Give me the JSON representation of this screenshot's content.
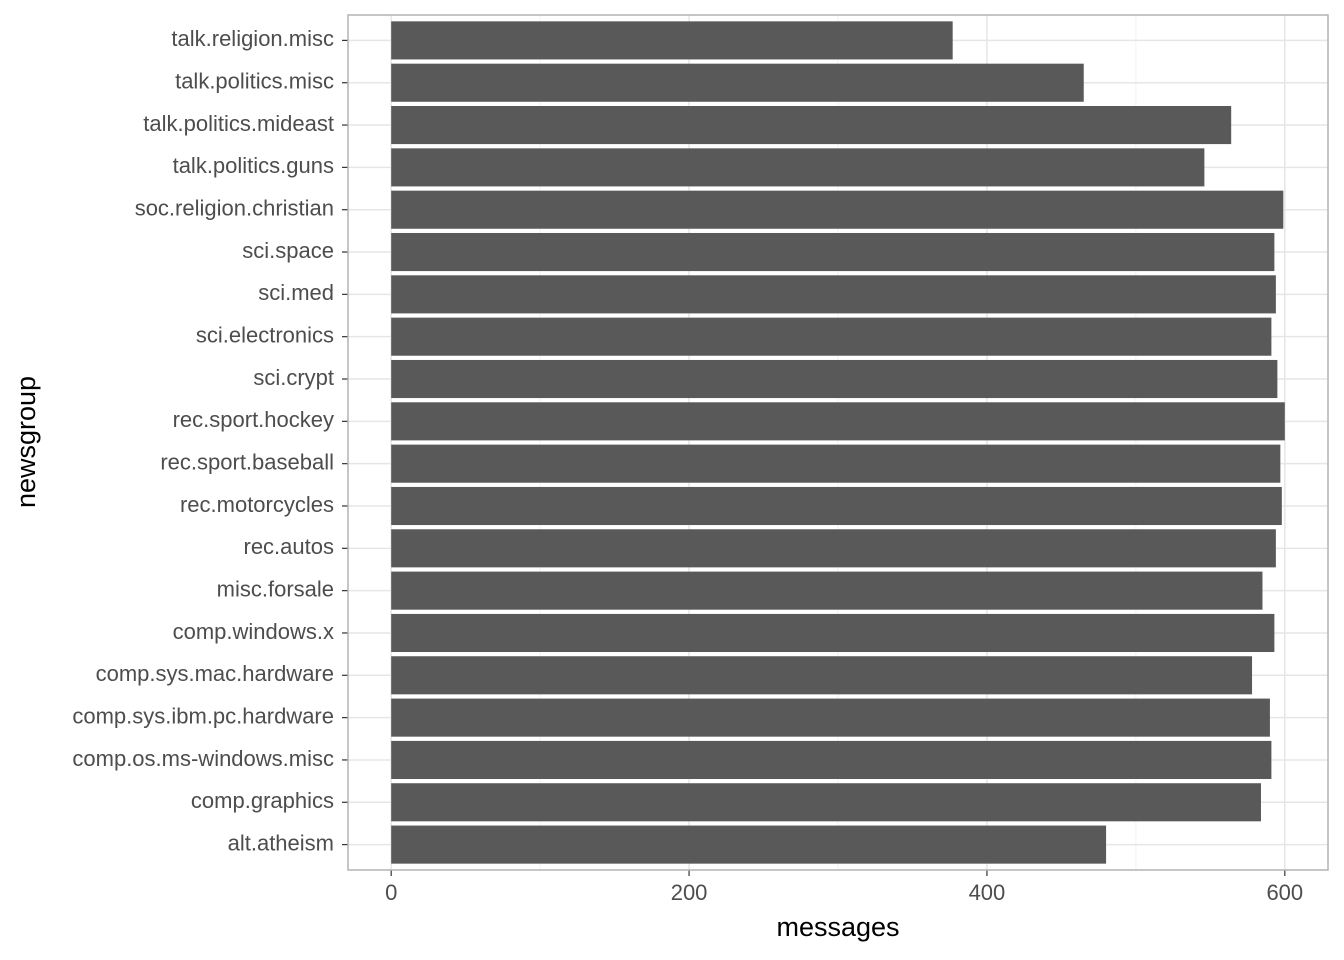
{
  "chart_data": {
    "type": "barh",
    "xlabel": "messages",
    "ylabel": "newsgroup",
    "categories": [
      "alt.atheism",
      "comp.graphics",
      "comp.os.ms-windows.misc",
      "comp.sys.ibm.pc.hardware",
      "comp.sys.mac.hardware",
      "comp.windows.x",
      "misc.forsale",
      "rec.autos",
      "rec.motorcycles",
      "rec.sport.baseball",
      "rec.sport.hockey",
      "sci.crypt",
      "sci.electronics",
      "sci.med",
      "sci.space",
      "soc.religion.christian",
      "talk.politics.guns",
      "talk.politics.mideast",
      "talk.politics.misc",
      "talk.religion.misc"
    ],
    "values": [
      480,
      584,
      591,
      590,
      578,
      593,
      585,
      594,
      598,
      597,
      600,
      595,
      591,
      594,
      593,
      599,
      546,
      564,
      465,
      377
    ],
    "color": "#595959",
    "xlim": [
      -29,
      629
    ],
    "xticks": [
      0,
      200,
      400,
      600
    ],
    "xminor": [
      100,
      300,
      500
    ],
    "grid": true
  }
}
